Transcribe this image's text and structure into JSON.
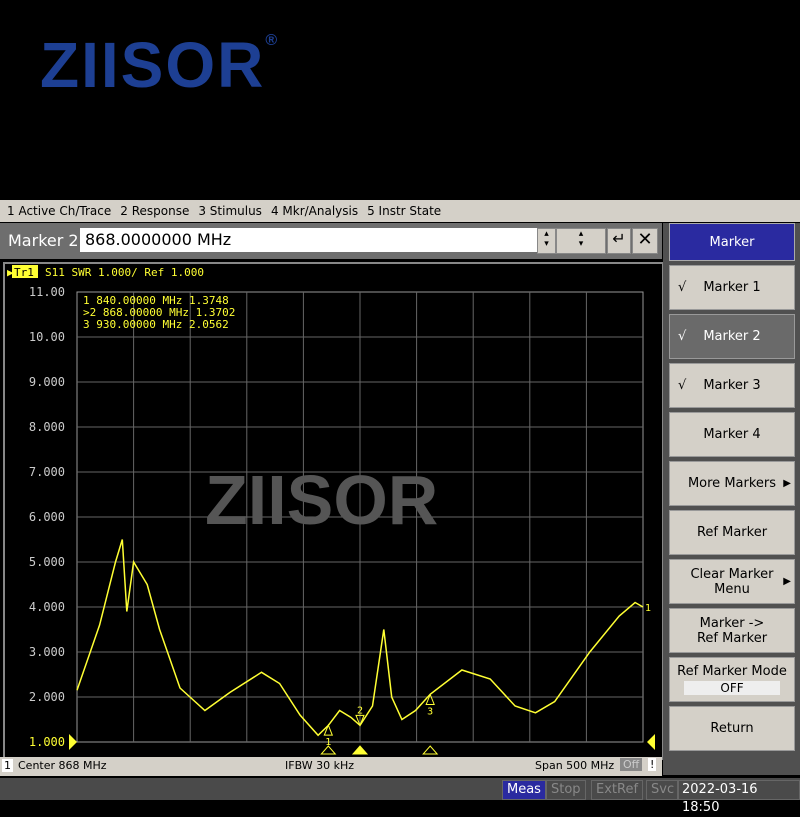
{
  "logo": {
    "text": "ZIISOR",
    "reg": "®",
    "color": "#1d3f93"
  },
  "watermark": "ZIISOR",
  "menu": [
    "1 Active Ch/Trace",
    "2 Response",
    "3 Stimulus",
    "4 Mkr/Analysis",
    "5 Instr State"
  ],
  "entry": {
    "label": "Marker 2",
    "value": "868.0000000 MHz"
  },
  "trace_header": {
    "tag": "Tr1",
    "text": "S11  SWR 1.000/ Ref 1.000"
  },
  "marker_table": [
    {
      "sel": " ",
      "num": "1",
      "freq": "840.00000 MHz",
      "val": "1.3748"
    },
    {
      "sel": ">",
      "num": "2",
      "freq": "868.00000 MHz",
      "val": "1.3702"
    },
    {
      "sel": " ",
      "num": "3",
      "freq": "930.00000 MHz",
      "val": "2.0562"
    }
  ],
  "status": {
    "channel": "1",
    "center": "Center 868 MHz",
    "ifbw": "IFBW 30 kHz",
    "span": "Span 500 MHz",
    "off": "Off",
    "warn": "!"
  },
  "bottom": {
    "meas": "Meas",
    "stop": "Stop",
    "extref": "ExtRef",
    "svc": "Svc",
    "datetime": "2022-03-16 18:50"
  },
  "softkeys": {
    "title": "Marker",
    "items": [
      {
        "label": "Marker 1",
        "checked": true
      },
      {
        "label": "Marker 2",
        "checked": true,
        "selected": true
      },
      {
        "label": "Marker 3",
        "checked": true
      },
      {
        "label": "Marker 4"
      },
      {
        "label": "More Markers",
        "submenu": true
      },
      {
        "label": "Ref Marker"
      },
      {
        "label": "Clear Marker Menu",
        "submenu": true
      },
      {
        "label": "Marker -> Ref Marker"
      },
      {
        "label": "Ref Marker Mode",
        "value": "OFF"
      },
      {
        "label": "Return"
      }
    ]
  },
  "chart_data": {
    "type": "line",
    "xlabel": "",
    "ylabel": "",
    "xlim": [
      618,
      1118
    ],
    "ylim": [
      1,
      11
    ],
    "yticks": [
      "11.00",
      "10.00",
      "9.000",
      "8.000",
      "7.000",
      "6.000",
      "5.000",
      "4.000",
      "3.000",
      "2.000",
      "1.000"
    ],
    "grid": true,
    "trace_color": "#ffff33",
    "x": [
      618,
      638,
      652,
      658,
      662,
      668,
      680,
      691,
      709,
      731,
      753,
      781,
      797,
      815,
      831,
      840,
      850,
      860,
      868,
      879,
      889,
      896,
      905,
      917,
      930,
      958,
      983,
      1005,
      1023,
      1040,
      1071,
      1097,
      1111,
      1118
    ],
    "y": [
      2.15,
      3.6,
      5.0,
      5.5,
      3.9,
      5.0,
      4.5,
      3.5,
      2.2,
      1.7,
      2.1,
      2.55,
      2.3,
      1.6,
      1.15,
      1.37,
      1.7,
      1.55,
      1.37,
      1.8,
      3.5,
      2.0,
      1.5,
      1.7,
      2.06,
      2.6,
      2.4,
      1.8,
      1.65,
      1.9,
      3.0,
      3.8,
      4.1,
      4.0
    ],
    "markers": [
      {
        "num": "1",
        "x": 840,
        "y": 1.3748
      },
      {
        "num": "2",
        "x": 868,
        "y": 1.3702
      },
      {
        "num": "3",
        "x": 930,
        "y": 2.0562
      }
    ]
  }
}
